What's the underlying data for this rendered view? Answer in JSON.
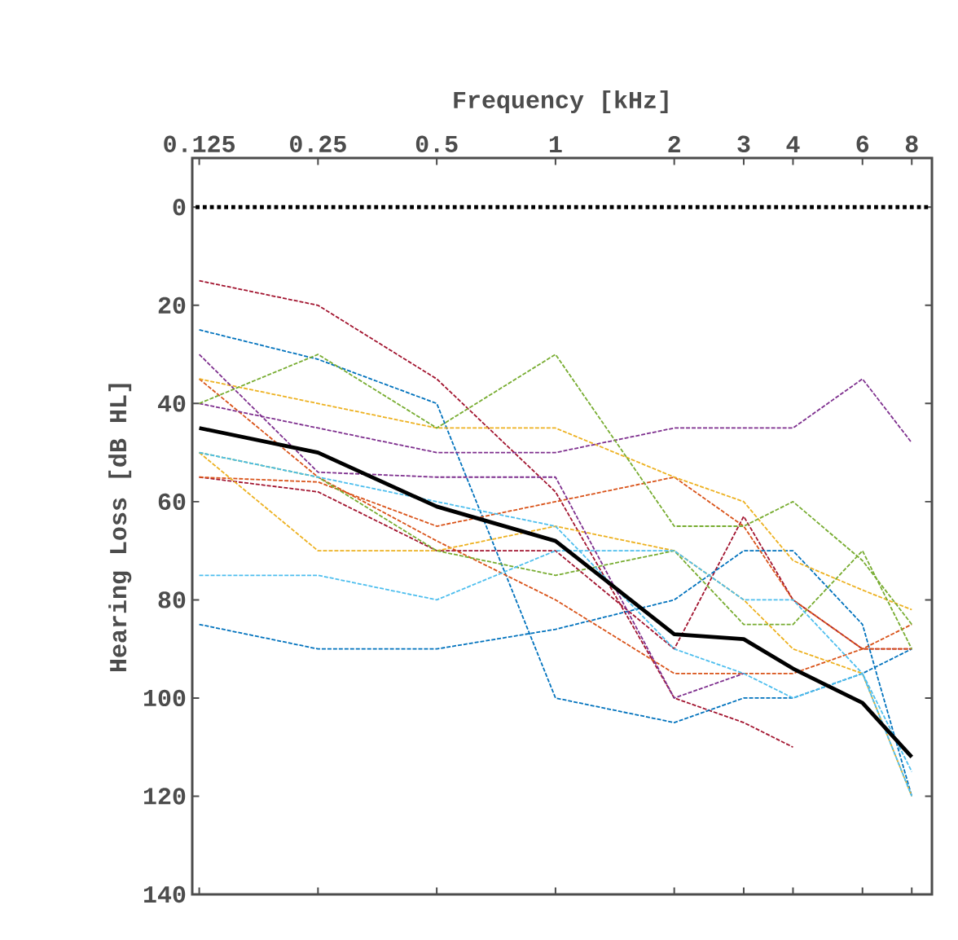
{
  "chart_data": {
    "type": "line",
    "xlabel": "Frequency [kHz]",
    "ylabel": "Hearing Loss [dB HL]",
    "log": "x",
    "x": [
      0.125,
      0.25,
      0.5,
      1,
      2,
      3,
      4,
      6,
      8
    ],
    "xlim": [
      0.12,
      9
    ],
    "xticks": [
      0.125,
      0.25,
      0.5,
      1,
      2,
      3,
      4,
      6,
      8
    ],
    "ylim": [
      140,
      -10
    ],
    "yticks": [
      0,
      20,
      40,
      60,
      80,
      100,
      120,
      140
    ],
    "grid": false,
    "marker": "none",
    "series": [
      {
        "color": "#a2142f",
        "line_style": "dashed",
        "values": [
          15,
          20,
          35,
          58,
          100,
          105,
          110,
          null,
          null
        ]
      },
      {
        "color": "#a2142f",
        "line_style": "dashed",
        "values": [
          55,
          58,
          70,
          70,
          90,
          63,
          80,
          90,
          90
        ]
      },
      {
        "color": "#0072bd",
        "line_style": "dashed",
        "values": [
          25,
          31,
          40,
          100,
          105,
          100,
          100,
          95,
          90
        ]
      },
      {
        "color": "#0072bd",
        "line_style": "dashed",
        "values": [
          85,
          90,
          90,
          86,
          80,
          70,
          70,
          85,
          120
        ]
      },
      {
        "color": "#d95319",
        "line_style": "dashed",
        "values": [
          55,
          56,
          65,
          60,
          55,
          65,
          80,
          90,
          85
        ]
      },
      {
        "color": "#d95319",
        "line_style": "dashed",
        "values": [
          35,
          55,
          68,
          80,
          95,
          95,
          95,
          90,
          90
        ]
      },
      {
        "color": "#edb120",
        "line_style": "dashed",
        "values": [
          35,
          40,
          45,
          45,
          55,
          60,
          72,
          78,
          82
        ]
      },
      {
        "color": "#edb120",
        "line_style": "dashed",
        "values": [
          50,
          70,
          70,
          65,
          70,
          80,
          90,
          95,
          120
        ]
      },
      {
        "color": "#7e2f8e",
        "line_style": "dashed",
        "values": [
          40,
          45,
          50,
          50,
          45,
          45,
          45,
          35,
          48
        ]
      },
      {
        "color": "#7e2f8e",
        "line_style": "dashed",
        "values": [
          30,
          54,
          55,
          55,
          100,
          95,
          null,
          null,
          null
        ]
      },
      {
        "color": "#77ac30",
        "line_style": "dashed",
        "values": [
          40,
          30,
          45,
          30,
          65,
          65,
          60,
          72,
          85
        ]
      },
      {
        "color": "#77ac30",
        "line_style": "dashed",
        "values": [
          50,
          55,
          70,
          75,
          70,
          85,
          85,
          70,
          90
        ]
      },
      {
        "color": "#4dbeee",
        "line_style": "dashed",
        "values": [
          75,
          75,
          80,
          70,
          70,
          80,
          80,
          95,
          120
        ]
      },
      {
        "color": "#4dbeee",
        "line_style": "dashed",
        "values": [
          50,
          55,
          60,
          65,
          90,
          95,
          100,
          95,
          115
        ]
      },
      {
        "color": "#000000",
        "line_style": "solid",
        "values": [
          45,
          50,
          61,
          68,
          87,
          88,
          94,
          101,
          112
        ]
      }
    ],
    "ref_lines": [
      {
        "axis": "y",
        "value": 0,
        "color": "#000000",
        "line_style": "dotted"
      }
    ]
  }
}
